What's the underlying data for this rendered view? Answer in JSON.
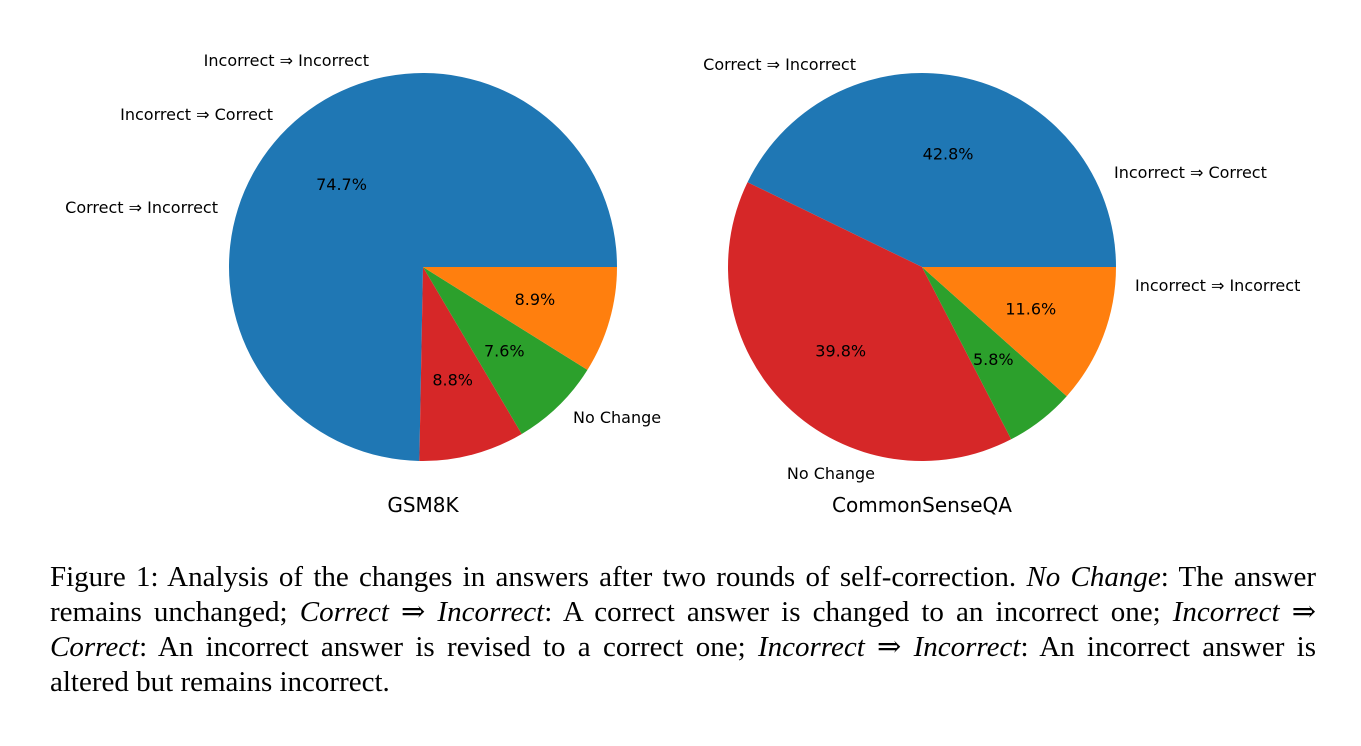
{
  "chart_data": [
    {
      "type": "pie",
      "title": "GSM8K",
      "slices": [
        {
          "label": "No Change",
          "value": 74.7,
          "pct_label": "74.7%",
          "color": "#1f77b4"
        },
        {
          "label": "Correct ⇒ Incorrect",
          "value": 8.8,
          "pct_label": "8.8%",
          "color": "#d62728"
        },
        {
          "label": "Incorrect ⇒ Correct",
          "value": 7.6,
          "pct_label": "7.6%",
          "color": "#2ca02c"
        },
        {
          "label": "Incorrect ⇒ Incorrect",
          "value": 8.9,
          "pct_label": "8.9%",
          "color": "#ff7f0e"
        }
      ]
    },
    {
      "type": "pie",
      "title": "CommonSenseQA",
      "slices": [
        {
          "label": "No Change",
          "value": 42.8,
          "pct_label": "42.8%",
          "color": "#1f77b4"
        },
        {
          "label": "Correct ⇒ Incorrect",
          "value": 39.8,
          "pct_label": "39.8%",
          "color": "#d62728"
        },
        {
          "label": "Incorrect ⇒ Correct",
          "value": 5.8,
          "pct_label": "5.8%",
          "color": "#2ca02c"
        },
        {
          "label": "Incorrect ⇒ Incorrect",
          "value": 11.6,
          "pct_label": "11.6%",
          "color": "#ff7f0e"
        }
      ]
    }
  ],
  "caption": {
    "lead": "Figure 1: Analysis of the changes in answers after two rounds of self-correction.",
    "term1": "No Change",
    "def1": ": The answer remains unchanged;",
    "term2": "Correct ⇒ Incorrect",
    "def2": ": A correct answer is changed to an incorrect one;",
    "term3": "Incorrect ⇒ Correct",
    "def3": ": An incorrect answer is revised to a correct one;",
    "term4": "Incorrect ⇒ Incorrect",
    "def4": ": An incorrect answer is altered but remains incorrect."
  }
}
